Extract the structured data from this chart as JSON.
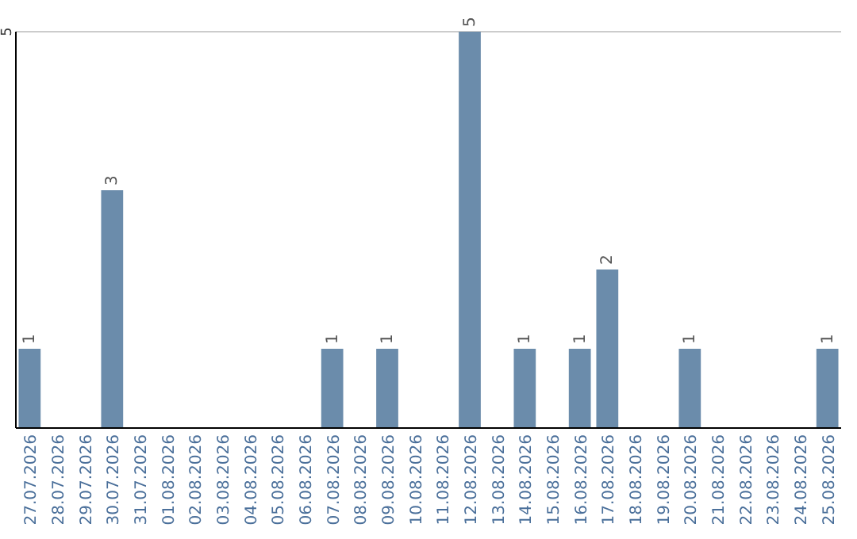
{
  "chart_data": {
    "type": "bar",
    "categories": [
      "27.07.2026",
      "28.07.2026",
      "29.07.2026",
      "30.07.2026",
      "31.07.2026",
      "01.08.2026",
      "02.08.2026",
      "03.08.2026",
      "04.08.2026",
      "05.08.2026",
      "06.08.2026",
      "07.08.2026",
      "08.08.2026",
      "09.08.2026",
      "10.08.2026",
      "11.08.2026",
      "12.08.2026",
      "13.08.2026",
      "14.08.2026",
      "15.08.2026",
      "16.08.2026",
      "17.08.2026",
      "18.08.2026",
      "19.08.2026",
      "20.08.2026",
      "21.08.2026",
      "22.08.2026",
      "23.08.2026",
      "24.08.2026",
      "25.08.2026"
    ],
    "values": [
      1,
      0,
      0,
      3,
      0,
      0,
      0,
      0,
      0,
      0,
      0,
      1,
      0,
      1,
      0,
      0,
      5,
      0,
      1,
      0,
      1,
      2,
      0,
      0,
      1,
      0,
      0,
      0,
      0,
      1
    ],
    "value_labels": [
      "1",
      null,
      null,
      "3",
      null,
      null,
      null,
      null,
      null,
      null,
      null,
      "1",
      null,
      "1",
      null,
      null,
      "5",
      null,
      "1",
      null,
      "1",
      "2",
      null,
      null,
      "1",
      null,
      null,
      null,
      null,
      "1"
    ],
    "color": "#6b8cab",
    "ylim": [
      0,
      5
    ],
    "yticks": [
      5
    ]
  }
}
